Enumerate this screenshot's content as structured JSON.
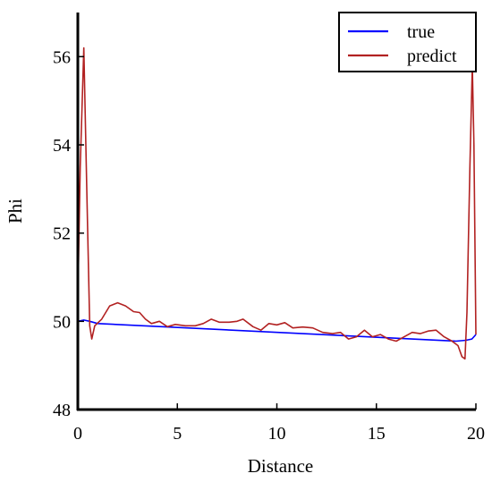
{
  "chart_data": {
    "type": "line",
    "title": "",
    "xlabel": "Distance",
    "ylabel": "Phi",
    "xlim": [
      0,
      20
    ],
    "ylim": [
      48,
      57
    ],
    "x_ticks": [
      0,
      5,
      10,
      15,
      20
    ],
    "y_ticks": [
      48,
      50,
      52,
      54,
      56
    ],
    "x_tick_labels": [
      "0",
      "5",
      "10",
      "15",
      "20"
    ],
    "y_tick_labels": [
      "48",
      "50",
      "52",
      "54",
      "56"
    ],
    "grid": false,
    "legend_position": "top-right",
    "series": [
      {
        "name": "true",
        "color": "#0000ff",
        "x": [
          0,
          0.3,
          0.6,
          1.0,
          19.0,
          19.5,
          19.8,
          20.0
        ],
        "y": [
          50.0,
          50.03,
          50.0,
          49.95,
          49.55,
          49.57,
          49.6,
          49.7
        ]
      },
      {
        "name": "predict",
        "color": "#b22222",
        "x": [
          0,
          0.12,
          0.3,
          0.45,
          0.6,
          0.7,
          0.85,
          1.2,
          1.6,
          2.0,
          2.4,
          2.8,
          3.1,
          3.4,
          3.7,
          4.1,
          4.5,
          4.9,
          5.4,
          5.9,
          6.3,
          6.7,
          7.1,
          7.6,
          8.0,
          8.3,
          8.8,
          9.2,
          9.6,
          10.0,
          10.4,
          10.8,
          11.3,
          11.8,
          12.3,
          12.8,
          13.2,
          13.6,
          14.0,
          14.4,
          14.8,
          15.2,
          15.6,
          16.0,
          16.4,
          16.8,
          17.2,
          17.6,
          18.0,
          18.4,
          18.8,
          19.1,
          19.3,
          19.45,
          19.55,
          19.7,
          19.82,
          19.9,
          20.0
        ],
        "y": [
          50.5,
          53.5,
          56.2,
          53.0,
          49.9,
          49.6,
          49.9,
          50.05,
          50.35,
          50.42,
          50.35,
          50.22,
          50.2,
          50.05,
          49.95,
          50.0,
          49.88,
          49.93,
          49.9,
          49.9,
          49.95,
          50.05,
          49.98,
          49.98,
          50.0,
          50.05,
          49.88,
          49.8,
          49.95,
          49.92,
          49.97,
          49.85,
          49.87,
          49.85,
          49.75,
          49.72,
          49.75,
          49.6,
          49.65,
          49.8,
          49.65,
          49.7,
          49.6,
          49.55,
          49.65,
          49.75,
          49.72,
          49.78,
          49.8,
          49.65,
          49.55,
          49.45,
          49.2,
          49.15,
          50.2,
          53.5,
          55.8,
          54.0,
          49.7
        ]
      }
    ]
  }
}
